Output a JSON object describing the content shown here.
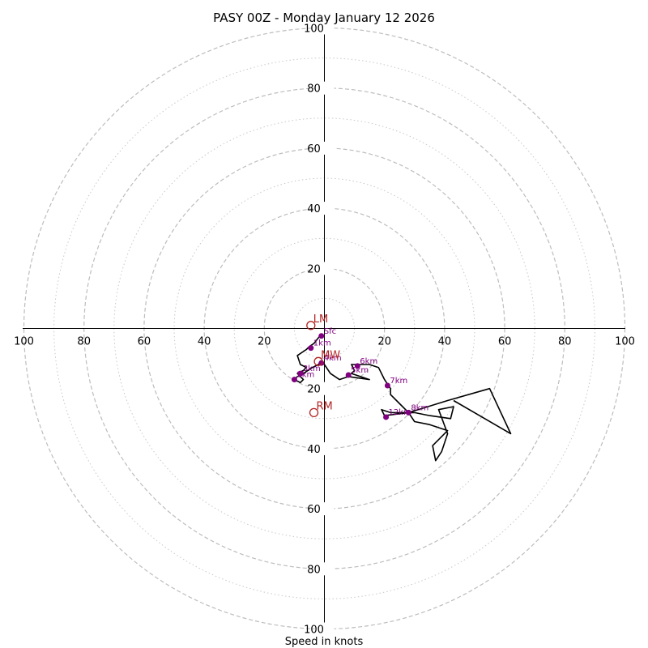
{
  "chart_data": {
    "type": "hodograph",
    "title": "PASY 00Z - Monday January 12 2026",
    "xlabel": "Speed in knots",
    "max_speed": 100,
    "major_rings": [
      20,
      40,
      60,
      80,
      100
    ],
    "minor_rings": [
      10,
      30,
      50,
      70,
      90
    ],
    "x_tick_labels": [
      "100",
      "80",
      "60",
      "40",
      "20",
      "20",
      "40",
      "60",
      "80",
      "100"
    ],
    "y_tick_labels": [
      "100",
      "80",
      "60",
      "40",
      "20",
      "20",
      "40",
      "60",
      "80",
      "100"
    ],
    "trace_color": "#000000",
    "height_marker_color": "#800080",
    "storm_marker_color": "#b22222",
    "trace": [
      [
        -1.5,
        -2.5
      ],
      [
        -3.5,
        -5
      ],
      [
        -5,
        -6
      ],
      [
        -6,
        -7
      ],
      [
        -9,
        -9
      ],
      [
        -8,
        -12
      ],
      [
        -6,
        -13
      ],
      [
        -7,
        -14
      ],
      [
        -9,
        -15
      ],
      [
        -8,
        -16
      ],
      [
        -7,
        -17
      ],
      [
        -8,
        -18
      ],
      [
        -10,
        -17
      ],
      [
        -9,
        -16
      ],
      [
        -7,
        -15
      ],
      [
        -4,
        -13
      ],
      [
        -2,
        -12
      ],
      [
        -1,
        -11
      ],
      [
        0,
        -12
      ],
      [
        2,
        -15
      ],
      [
        5,
        -17
      ],
      [
        8,
        -16
      ],
      [
        15,
        -17
      ],
      [
        9,
        -15
      ],
      [
        10,
        -14
      ],
      [
        9,
        -12
      ],
      [
        11,
        -12
      ],
      [
        15,
        -12
      ],
      [
        18,
        -13
      ],
      [
        19,
        -15
      ],
      [
        20,
        -17
      ],
      [
        22,
        -20
      ],
      [
        22,
        -22
      ],
      [
        24,
        -24
      ],
      [
        26,
        -26
      ],
      [
        28,
        -28
      ],
      [
        30,
        -31
      ],
      [
        35,
        -32
      ],
      [
        41,
        -34
      ],
      [
        36,
        -39
      ],
      [
        37,
        -44
      ],
      [
        39,
        -41
      ],
      [
        41,
        -35
      ],
      [
        38,
        -27
      ],
      [
        43,
        -26
      ],
      [
        42,
        -30
      ],
      [
        35,
        -29
      ],
      [
        30,
        -28
      ],
      [
        28,
        -28
      ],
      [
        22,
        -28
      ],
      [
        19,
        -27
      ],
      [
        20,
        -29
      ],
      [
        28,
        -28
      ],
      [
        41,
        -24
      ],
      [
        55,
        -20
      ],
      [
        62,
        -35
      ],
      [
        43,
        -24
      ]
    ],
    "height_markers": [
      {
        "label": "Sfc",
        "u": -1,
        "v": -2.5
      },
      {
        "label": "1km",
        "u": -4.5,
        "v": -6.5
      },
      {
        "label": "2km",
        "u": -10,
        "v": -17
      },
      {
        "label": "3km",
        "u": -8,
        "v": -15
      },
      {
        "label": "4km",
        "u": -1,
        "v": -11.5
      },
      {
        "label": "5km",
        "u": 8,
        "v": -15.5
      },
      {
        "label": "6km",
        "u": 11,
        "v": -12.5
      },
      {
        "label": "7km",
        "u": 21,
        "v": -19
      },
      {
        "label": "8km",
        "u": 28,
        "v": -28
      },
      {
        "label": "12km",
        "u": 20.5,
        "v": -29.5
      }
    ],
    "storm_markers": [
      {
        "label": "LM",
        "u": -4.5,
        "v": 1
      },
      {
        "label": "RM",
        "u": -3.5,
        "v": -28
      },
      {
        "label": "MW",
        "u": -2,
        "v": -11
      }
    ]
  }
}
